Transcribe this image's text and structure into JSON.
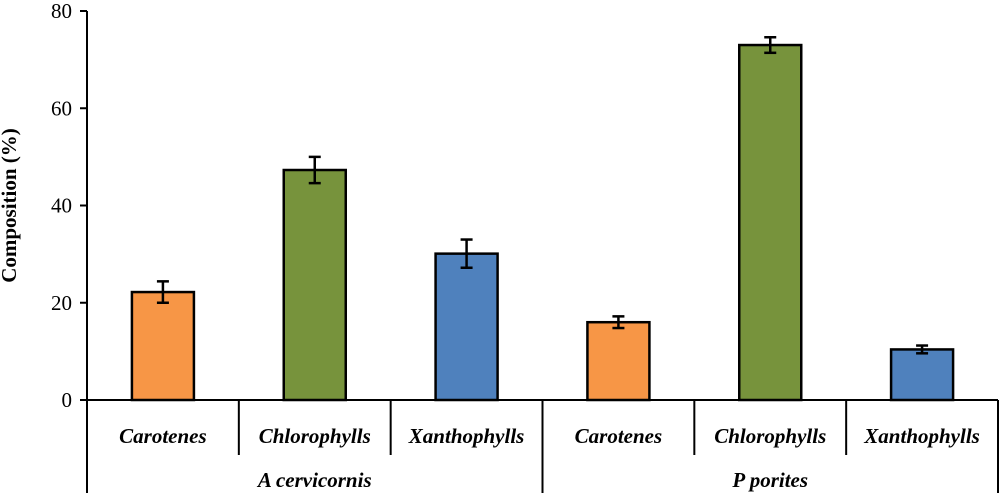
{
  "chart_data": {
    "type": "bar",
    "title": "",
    "ylabel": "Composition (%)",
    "xlabel": "",
    "ylim": [
      0,
      80
    ],
    "yticks": [
      0,
      20,
      40,
      60,
      80
    ],
    "grid": false,
    "groups": [
      {
        "name": "A cervicornis",
        "categories": [
          "Carotenes",
          "Chlorophylls",
          "Xanthophylls"
        ],
        "values": [
          22.2,
          47.3,
          30.1
        ],
        "errors": [
          2.2,
          2.7,
          2.9
        ]
      },
      {
        "name": "P porites",
        "categories": [
          "Carotenes",
          "Chlorophylls",
          "Xanthophylls"
        ],
        "values": [
          16.0,
          73.0,
          10.4
        ],
        "errors": [
          1.2,
          1.6,
          0.8
        ]
      }
    ],
    "category_colors": {
      "Carotenes": "#F79646",
      "Chlorophylls": "#77933C",
      "Xanthophylls": "#4F81BD"
    }
  }
}
